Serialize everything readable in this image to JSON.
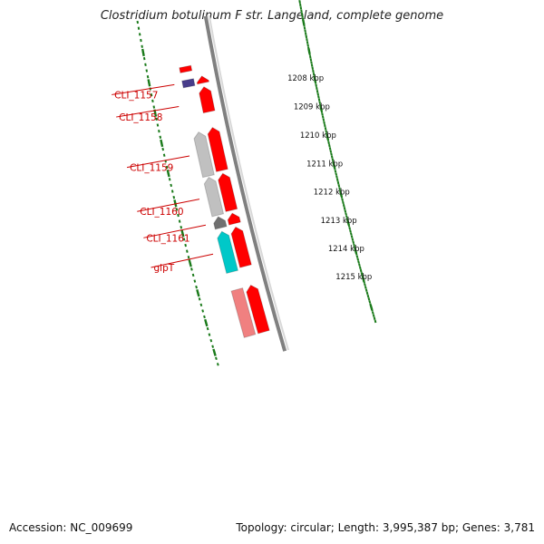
{
  "title": "Clostridium botulinum F str. Langeland, complete genome",
  "accession_text": "Accession: NC_009699",
  "summary_text": "Topology: circular; Length: 3,995,387 bp; Genes: 3,781",
  "colors": {
    "backbone": "#808080",
    "gene_red": "#ff0000",
    "gene_light_red": "#f08080",
    "gene_grey": "#c0c0c0",
    "gene_dark_grey": "#707070",
    "gene_blue": "#483d8b",
    "gene_cyan": "#00c8c8",
    "tick": "#1a7a1a",
    "label": "#cc0000"
  },
  "scale_labels": [
    {
      "pos_kbp": 1208,
      "text": "1208 kbp"
    },
    {
      "pos_kbp": 1209,
      "text": "1209 kbp"
    },
    {
      "pos_kbp": 1210,
      "text": "1210 kbp"
    },
    {
      "pos_kbp": 1211,
      "text": "1211 kbp"
    },
    {
      "pos_kbp": 1212,
      "text": "1212 kbp"
    },
    {
      "pos_kbp": 1213,
      "text": "1213 kbp"
    },
    {
      "pos_kbp": 1214,
      "text": "1214 kbp"
    },
    {
      "pos_kbp": 1215,
      "text": "1215 kbp"
    }
  ],
  "genes": [
    {
      "strand": "outer",
      "start_kbp": 1206.71,
      "end_kbp": 1206.88,
      "color": "#ff0000",
      "arrow": "none"
    },
    {
      "strand": "inner",
      "start_kbp": 1207.12,
      "end_kbp": 1207.35,
      "color": "#ff0000",
      "arrow": "start"
    },
    {
      "strand": "outer",
      "start_kbp": 1207.15,
      "end_kbp": 1207.38,
      "color": "#483d8b",
      "arrow": "none"
    },
    {
      "strand": "inner",
      "start_kbp": 1207.48,
      "end_kbp": 1208.32,
      "color": "#ff0000",
      "arrow": "start"
    },
    {
      "strand": "inner",
      "start_kbp": 1208.85,
      "end_kbp": 1210.3,
      "color": "#ff0000",
      "arrow": "start"
    },
    {
      "strand": "outer",
      "start_kbp": 1208.9,
      "end_kbp": 1210.38,
      "color": "#c0c0c0",
      "arrow": "start"
    },
    {
      "strand": "inner",
      "start_kbp": 1210.4,
      "end_kbp": 1211.65,
      "color": "#ff0000",
      "arrow": "start"
    },
    {
      "strand": "outer",
      "start_kbp": 1210.42,
      "end_kbp": 1211.7,
      "color": "#c0c0c0",
      "arrow": "start"
    },
    {
      "strand": "inner",
      "start_kbp": 1211.75,
      "end_kbp": 1212.1,
      "color": "#ff0000",
      "arrow": "start"
    },
    {
      "strand": "outer",
      "start_kbp": 1211.75,
      "end_kbp": 1212.13,
      "color": "#707070",
      "arrow": "start"
    },
    {
      "strand": "inner",
      "start_kbp": 1212.22,
      "end_kbp": 1213.55,
      "color": "#ff0000",
      "arrow": "start"
    },
    {
      "strand": "outer",
      "start_kbp": 1212.25,
      "end_kbp": 1213.62,
      "color": "#00c8c8",
      "arrow": "start"
    },
    {
      "strand": "inner",
      "start_kbp": 1214.2,
      "end_kbp": 1215.8,
      "color": "#ff0000",
      "arrow": "start"
    },
    {
      "strand": "outer",
      "start_kbp": 1214.22,
      "end_kbp": 1215.8,
      "color": "#f08080",
      "arrow": "none"
    }
  ],
  "gene_labels": [
    {
      "text": "CLI_1157",
      "gene_kbp": 1207.22
    },
    {
      "text": "CLI_1158",
      "gene_kbp": 1207.95
    },
    {
      "text": "CLI_1159",
      "gene_kbp": 1209.6
    },
    {
      "text": "CLI_1160",
      "gene_kbp": 1211.05
    },
    {
      "text": "CLI_1161",
      "gene_kbp": 1211.92
    },
    {
      "text": "glpT",
      "gene_kbp": 1212.9
    }
  ]
}
